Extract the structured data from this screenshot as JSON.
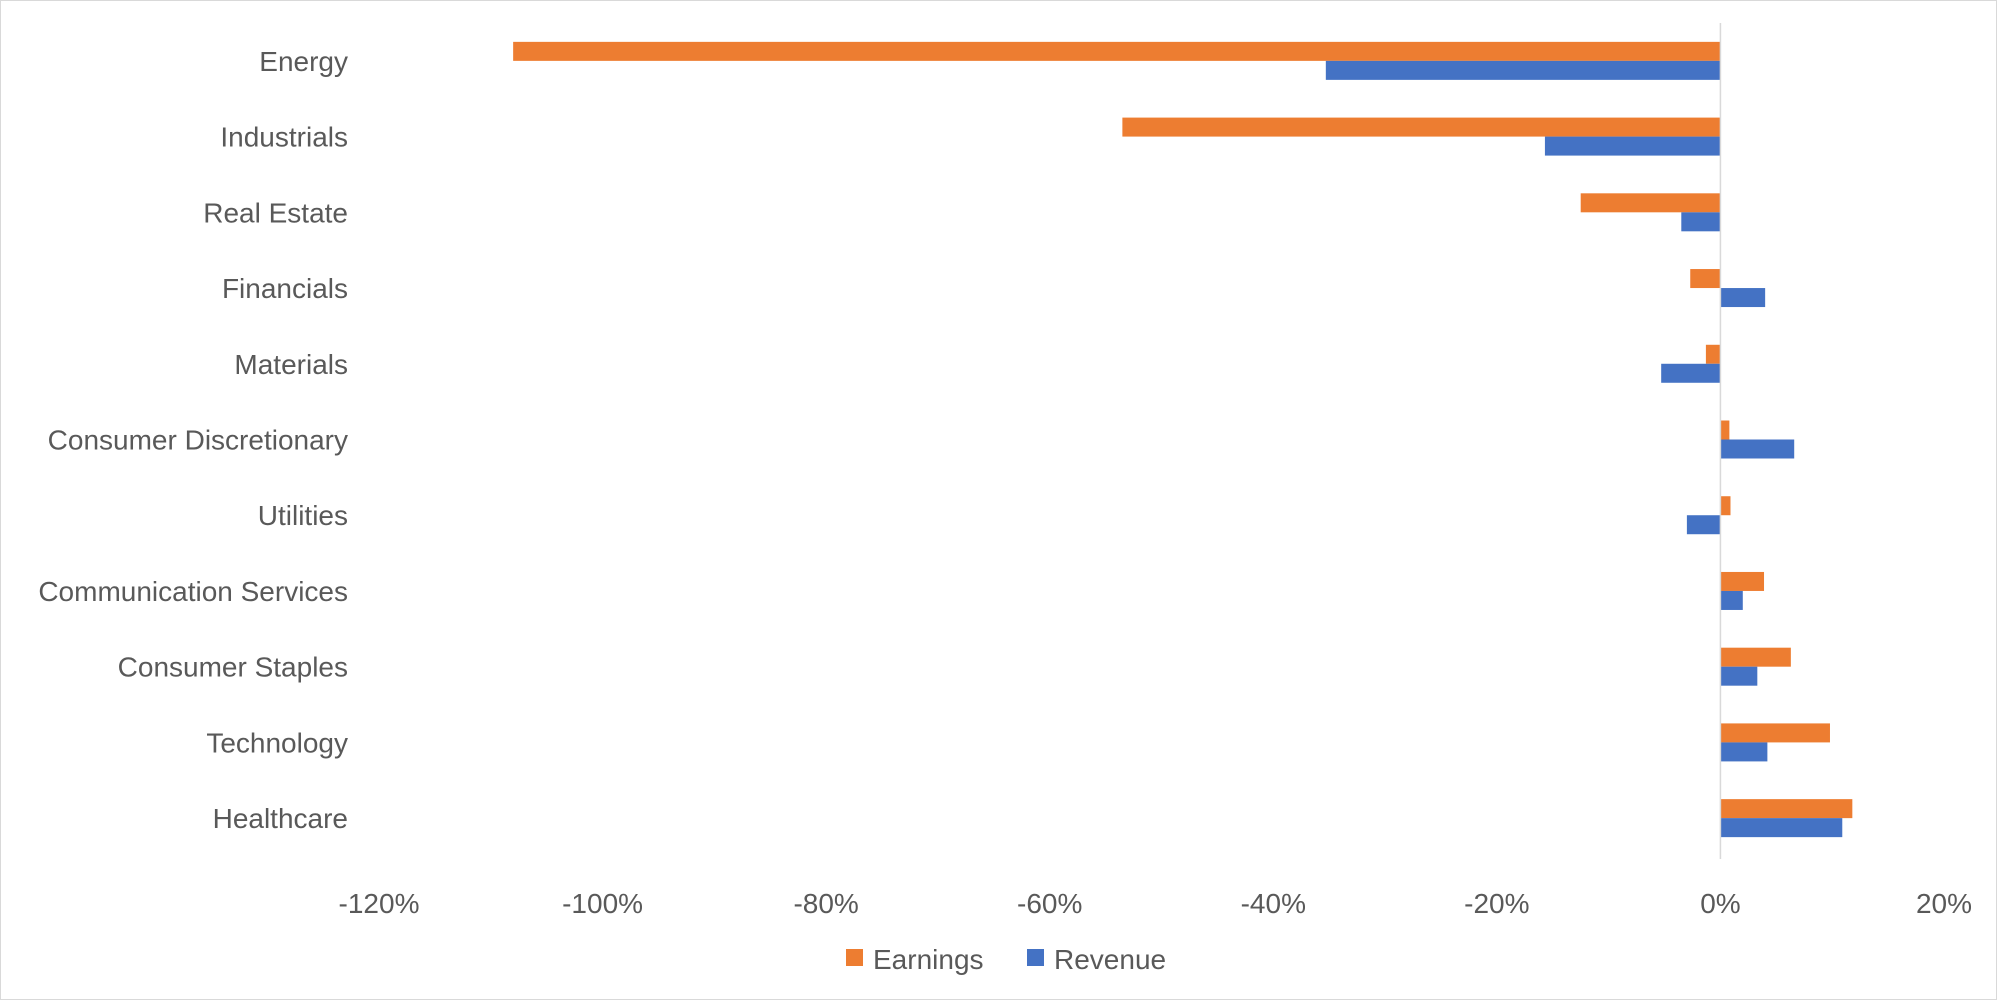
{
  "chart_data": {
    "type": "bar",
    "orientation": "horizontal",
    "categories": [
      "Energy",
      "Industrials",
      "Real Estate",
      "Financials",
      "Materials",
      "Consumer Discretionary",
      "Utilities",
      "Communication Services",
      "Consumer Staples",
      "Technology",
      "Healthcare"
    ],
    "series": [
      {
        "name": "Earnings",
        "color": "#ed7d31",
        "values": [
          -108.0,
          -53.5,
          -12.5,
          -2.7,
          -1.3,
          0.8,
          0.9,
          3.9,
          6.3,
          9.8,
          11.8
        ]
      },
      {
        "name": "Revenue",
        "color": "#4472c4",
        "values": [
          -35.3,
          -15.7,
          -3.5,
          4.0,
          -5.3,
          6.6,
          -3.0,
          2.0,
          3.3,
          4.2,
          10.9
        ]
      }
    ],
    "xlim": [
      -120,
      20
    ],
    "xticks": [
      -120,
      -100,
      -80,
      -60,
      -40,
      -20,
      0,
      20
    ],
    "xtick_labels": [
      "-120%",
      "-100%",
      "-80%",
      "-60%",
      "-40%",
      "-20%",
      "0%",
      "20%"
    ],
    "grid": false,
    "legend": "bottom",
    "title": "",
    "xlabel": "",
    "ylabel": ""
  }
}
